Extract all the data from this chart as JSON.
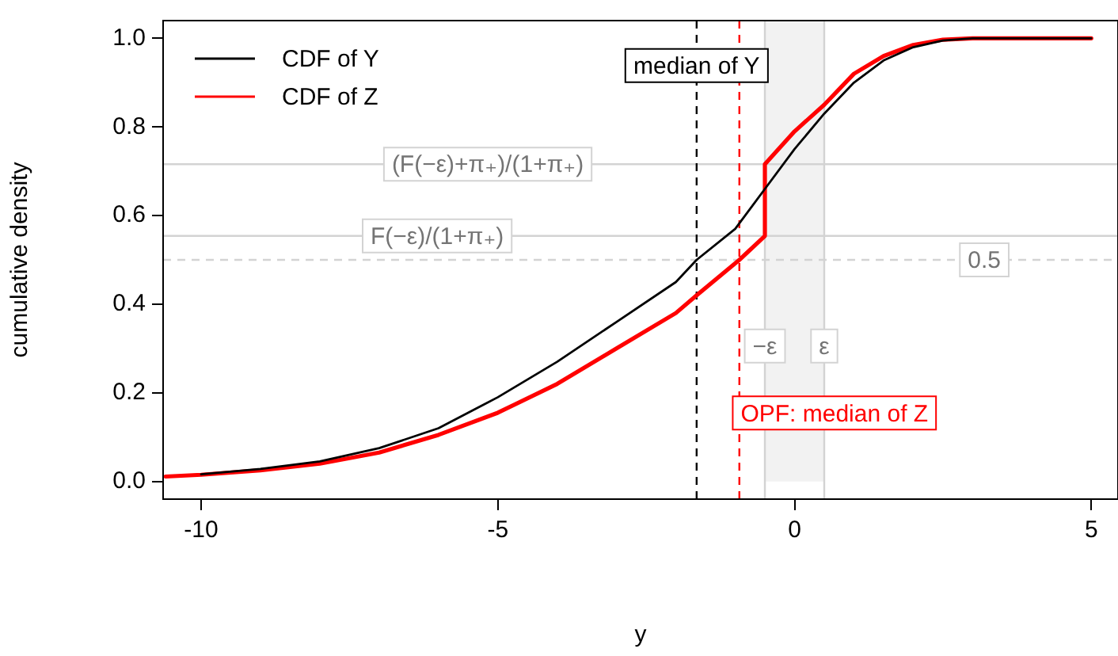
{
  "chart_data": {
    "type": "line",
    "xlabel": "y",
    "ylabel": "cumulative density",
    "xlim": [
      -10.64,
      5.45
    ],
    "ylim": [
      -0.04,
      1.04
    ],
    "xticks": [
      -10,
      -5,
      0,
      5
    ],
    "yticks": [
      {
        "value": 0,
        "label": "0.0"
      },
      {
        "value": 0.2,
        "label": "0.2"
      },
      {
        "value": 0.4,
        "label": "0.4"
      },
      {
        "value": 0.6,
        "label": "0.6"
      },
      {
        "value": 0.8,
        "label": "0.8"
      },
      {
        "value": 1,
        "label": "1.0"
      }
    ],
    "legend": "top left",
    "line_style": "solid",
    "marker": "none",
    "series": [
      {
        "name": "CDF of Y",
        "color": "#000000",
        "x": [
          -10,
          -9,
          -8,
          -7,
          -6,
          -5,
          -4,
          -3,
          -2,
          -1.65,
          -1,
          -0.5,
          0,
          0.5,
          1,
          1.5,
          2,
          2.5,
          3,
          5
        ],
        "values": [
          0.016,
          0.028,
          0.045,
          0.075,
          0.12,
          0.19,
          0.27,
          0.36,
          0.45,
          0.5,
          0.57,
          0.66,
          0.75,
          0.83,
          0.9,
          0.95,
          0.98,
          0.995,
          1,
          1
        ]
      },
      {
        "name": "CDF of Z",
        "color": "#ff0000",
        "x": [
          -10.6,
          -10,
          -9,
          -8,
          -7,
          -6,
          -5,
          -4,
          -3,
          -2,
          -1.65,
          -0.93,
          -0.5,
          -0.5,
          0,
          0.5,
          1,
          1.5,
          2,
          2.5,
          3,
          5
        ],
        "values": [
          0.011,
          0.015,
          0.025,
          0.04,
          0.065,
          0.105,
          0.155,
          0.22,
          0.3,
          0.38,
          0.42,
          0.5,
          0.554,
          0.716,
          0.79,
          0.85,
          0.92,
          0.96,
          0.985,
          0.997,
          1,
          1
        ]
      }
    ],
    "bands": [
      {
        "axis": "x",
        "from": -0.5,
        "to": 0.5,
        "color": "#f2f2f2"
      }
    ],
    "ref_lines": [
      {
        "axis": "y",
        "value": 0.716,
        "label": "(F(−ε)+π₊)/(1+π₊)",
        "color": "#d3d3d3",
        "line_style": "solid"
      },
      {
        "axis": "y",
        "value": 0.554,
        "label": "F(−ε)/(1+π₊)",
        "color": "#d3d3d3",
        "line_style": "solid"
      },
      {
        "axis": "y",
        "value": 0.5,
        "label": "0.5",
        "color": "#d3d3d3",
        "line_style": "dashed"
      },
      {
        "axis": "x",
        "value": -1.65,
        "label": "median of Y",
        "color": "#000000",
        "line_style": "dashed"
      },
      {
        "axis": "x",
        "value": -0.93,
        "label": "OPF: median of Z",
        "color": "#ff0000",
        "line_style": "dashed"
      },
      {
        "axis": "x",
        "value": -0.5,
        "label": "−ε",
        "color": "#d3d3d3",
        "line_style": "solid"
      },
      {
        "axis": "x",
        "value": 0.5,
        "label": "ε",
        "color": "#d3d3d3",
        "line_style": "solid"
      }
    ]
  }
}
